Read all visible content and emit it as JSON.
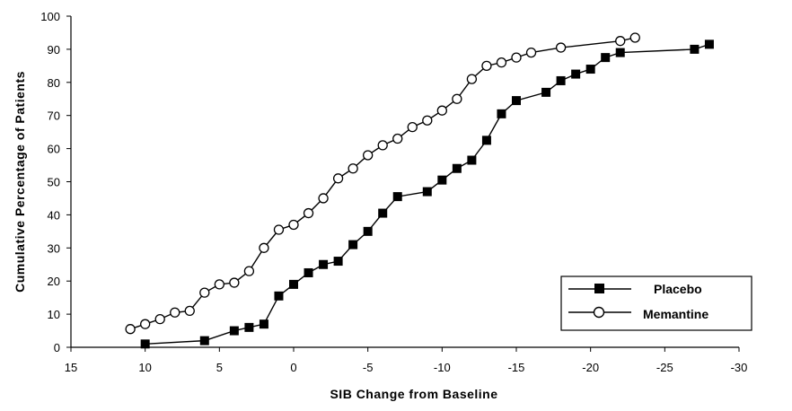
{
  "chart_data": {
    "type": "line",
    "xlabel": "SIB Change from Baseline",
    "ylabel": "Cumulative Percentage of Patients",
    "xlim": [
      15,
      -30
    ],
    "ylim": [
      0,
      100
    ],
    "x_ticks": [
      15,
      10,
      5,
      0,
      -5,
      -10,
      -15,
      -20,
      -25,
      -30
    ],
    "y_ticks": [
      0,
      10,
      20,
      30,
      40,
      50,
      60,
      70,
      80,
      90,
      100
    ],
    "grid": false,
    "legend_position": "bottom-right",
    "series": [
      {
        "name": "Placebo",
        "marker": "filled-square",
        "color": "#000000",
        "points": [
          [
            10,
            1
          ],
          [
            6,
            2
          ],
          [
            4,
            5
          ],
          [
            3,
            6
          ],
          [
            2,
            7
          ],
          [
            1,
            15.5
          ],
          [
            0,
            19
          ],
          [
            -1,
            22.5
          ],
          [
            -2,
            25
          ],
          [
            -3,
            26
          ],
          [
            -4,
            31
          ],
          [
            -5,
            35
          ],
          [
            -6,
            40.5
          ],
          [
            -7,
            45.5
          ],
          [
            -9,
            47
          ],
          [
            -10,
            50.5
          ],
          [
            -11,
            54
          ],
          [
            -12,
            56.5
          ],
          [
            -13,
            62.5
          ],
          [
            -14,
            70.5
          ],
          [
            -15,
            74.5
          ],
          [
            -17,
            77
          ],
          [
            -18,
            80.5
          ],
          [
            -19,
            82.5
          ],
          [
            -20,
            84
          ],
          [
            -21,
            87.5
          ],
          [
            -22,
            89
          ],
          [
            -27,
            90
          ],
          [
            -28,
            91.5
          ]
        ]
      },
      {
        "name": "Memantine",
        "marker": "open-circle",
        "color": "#000000",
        "points": [
          [
            11,
            5.5
          ],
          [
            10,
            7
          ],
          [
            9,
            8.5
          ],
          [
            8,
            10.5
          ],
          [
            7,
            11
          ],
          [
            6,
            16.5
          ],
          [
            5,
            19
          ],
          [
            4,
            19.5
          ],
          [
            3,
            23
          ],
          [
            2,
            30
          ],
          [
            1,
            35.5
          ],
          [
            0,
            37
          ],
          [
            -1,
            40.5
          ],
          [
            -2,
            45
          ],
          [
            -3,
            51
          ],
          [
            -4,
            54
          ],
          [
            -5,
            58
          ],
          [
            -6,
            61
          ],
          [
            -7,
            63
          ],
          [
            -8,
            66.5
          ],
          [
            -9,
            68.5
          ],
          [
            -10,
            71.5
          ],
          [
            -11,
            75
          ],
          [
            -12,
            81
          ],
          [
            -13,
            85
          ],
          [
            -14,
            86
          ],
          [
            -15,
            87.5
          ],
          [
            -16,
            89
          ],
          [
            -18,
            90.5
          ],
          [
            -22,
            92.5
          ],
          [
            -23,
            93.5
          ]
        ]
      }
    ]
  }
}
